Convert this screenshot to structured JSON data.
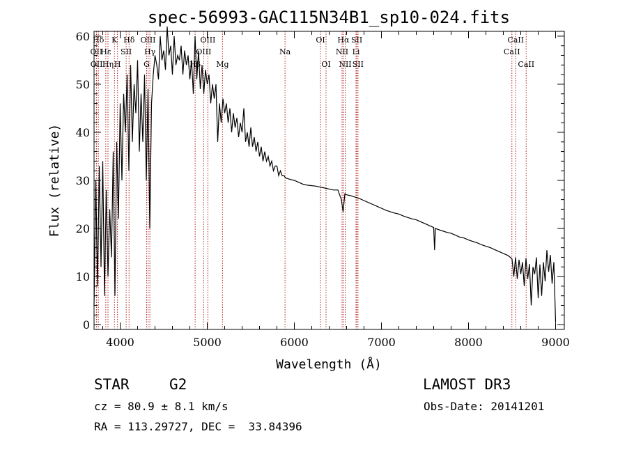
{
  "chart_data": {
    "type": "line",
    "title": "spec-56993-GAC115N34B1_sp10-024.fits",
    "xlabel": "Wavelength (Å)",
    "ylabel": "Flux (relative)",
    "xlim": [
      3700,
      9100
    ],
    "ylim": [
      -1,
      61
    ],
    "xticks": [
      4000,
      5000,
      6000,
      7000,
      8000,
      9000
    ],
    "yticks": [
      0,
      10,
      20,
      30,
      40,
      50,
      60
    ],
    "xtick_labels": [
      "4000",
      "5000",
      "6000",
      "7000",
      "8000",
      "9000"
    ],
    "ytick_labels": [
      "0",
      "10",
      "20",
      "30",
      "40",
      "50",
      "60"
    ],
    "grid": false,
    "series": [
      {
        "name": "flux",
        "x": [
          3700,
          3720,
          3740,
          3760,
          3780,
          3800,
          3820,
          3840,
          3860,
          3880,
          3900,
          3920,
          3940,
          3960,
          3980,
          4000,
          4020,
          4040,
          4060,
          4080,
          4100,
          4120,
          4140,
          4160,
          4180,
          4200,
          4220,
          4240,
          4260,
          4280,
          4300,
          4320,
          4340,
          4360,
          4380,
          4400,
          4420,
          4440,
          4460,
          4480,
          4500,
          4520,
          4540,
          4560,
          4580,
          4600,
          4620,
          4640,
          4660,
          4680,
          4700,
          4720,
          4740,
          4760,
          4780,
          4800,
          4820,
          4840,
          4860,
          4880,
          4900,
          4920,
          4940,
          4960,
          4980,
          5000,
          5020,
          5040,
          5060,
          5080,
          5100,
          5120,
          5140,
          5160,
          5180,
          5200,
          5220,
          5240,
          5260,
          5280,
          5300,
          5320,
          5340,
          5360,
          5380,
          5400,
          5420,
          5440,
          5460,
          5480,
          5500,
          5520,
          5540,
          5560,
          5580,
          5600,
          5620,
          5640,
          5660,
          5680,
          5700,
          5720,
          5740,
          5760,
          5780,
          5800,
          5820,
          5840,
          5860,
          5880,
          5900,
          5950,
          6000,
          6050,
          6100,
          6150,
          6200,
          6250,
          6300,
          6350,
          6400,
          6450,
          6500,
          6540,
          6560,
          6580,
          6600,
          6650,
          6700,
          6750,
          6800,
          6850,
          6900,
          6950,
          7000,
          7050,
          7100,
          7150,
          7200,
          7250,
          7300,
          7350,
          7400,
          7450,
          7500,
          7550,
          7600,
          7610,
          7620,
          7650,
          7700,
          7750,
          7800,
          7850,
          7900,
          7950,
          8000,
          8050,
          8100,
          8150,
          8200,
          8250,
          8300,
          8350,
          8400,
          8450,
          8480,
          8500,
          8520,
          8540,
          8560,
          8580,
          8600,
          8620,
          8640,
          8660,
          8680,
          8700,
          8720,
          8740,
          8760,
          8780,
          8800,
          8820,
          8840,
          8860,
          8880,
          8900,
          8920,
          8940,
          8960,
          8980,
          9000
        ],
        "values": [
          4,
          30,
          8,
          33,
          12,
          34,
          6,
          28,
          10,
          24,
          14,
          36,
          6,
          38,
          22,
          46,
          30,
          48,
          40,
          52,
          32,
          54,
          38,
          50,
          44,
          55,
          36,
          48,
          38,
          52,
          30,
          49,
          20,
          46,
          52,
          56,
          54,
          51,
          60,
          55,
          57,
          53,
          62,
          56,
          58,
          52,
          60,
          54,
          56,
          55,
          58,
          52,
          57,
          54,
          56,
          51,
          55,
          48,
          60,
          51,
          57,
          49,
          54,
          48,
          53,
          50,
          52,
          46,
          50,
          47,
          50,
          38,
          46,
          42,
          47,
          44,
          46,
          42,
          45,
          40,
          44,
          41,
          43,
          39,
          42,
          40,
          45,
          38,
          40,
          37,
          41,
          37,
          39,
          36,
          38,
          35,
          37,
          34,
          36,
          34,
          35,
          33,
          34,
          32,
          33,
          33,
          31,
          32,
          31,
          31,
          30.5,
          30.2,
          30.0,
          29.6,
          29.2,
          29.0,
          28.9,
          28.8,
          28.6,
          28.4,
          28.2,
          28.0,
          28.0,
          26.0,
          23.5,
          27.2,
          27.0,
          26.8,
          26.5,
          26.2,
          25.8,
          25.4,
          25.0,
          24.6,
          24.2,
          23.8,
          23.5,
          23.2,
          23.0,
          22.6,
          22.3,
          22.0,
          21.8,
          21.4,
          21.0,
          20.6,
          20.2,
          15.5,
          20.0,
          19.8,
          19.5,
          19.2,
          19.0,
          18.6,
          18.2,
          18.0,
          17.6,
          17.3,
          17.0,
          16.6,
          16.3,
          16.0,
          15.6,
          15.2,
          14.8,
          14.4,
          14.0,
          13.6,
          10.0,
          14.0,
          9.5,
          13.5,
          10.5,
          13.0,
          8.0,
          13.8,
          9.5,
          12.6,
          4.0,
          12.0,
          10.5,
          14.0,
          5.5,
          12.5,
          6.0,
          13.0,
          9.0,
          15.5,
          11.0,
          14.5,
          8.5,
          13.0,
          0.5
        ]
      }
    ],
    "line_labels": [
      {
        "name": "Hδ",
        "wl": 3750,
        "row": 0
      },
      {
        "name": "OII",
        "wl": 3727,
        "row": 1
      },
      {
        "name": "OII",
        "wl": 3729,
        "row": 2
      },
      {
        "name": "Hε",
        "wl": 3835,
        "row": 1
      },
      {
        "name": "Hη",
        "wl": 3860,
        "row": 2
      },
      {
        "name": "K",
        "wl": 3934,
        "row": 0
      },
      {
        "name": "H",
        "wl": 3969,
        "row": 2
      },
      {
        "name": "SII",
        "wl": 4069,
        "row": 1
      },
      {
        "name": "Hδ",
        "wl": 4102,
        "row": 0
      },
      {
        "name": "G",
        "wl": 4304,
        "row": 2
      },
      {
        "name": "OIII",
        "wl": 4320,
        "row": 0
      },
      {
        "name": "Hγ",
        "wl": 4341,
        "row": 1
      },
      {
        "name": "Hβ",
        "wl": 4861,
        "row": 2
      },
      {
        "name": "OIII",
        "wl": 4959,
        "row": 1
      },
      {
        "name": "OIII",
        "wl": 5007,
        "row": 0
      },
      {
        "name": "Mg",
        "wl": 5175,
        "row": 2
      },
      {
        "name": "Na",
        "wl": 5893,
        "row": 1
      },
      {
        "name": "OI",
        "wl": 6300,
        "row": 0
      },
      {
        "name": "OI",
        "wl": 6364,
        "row": 2
      },
      {
        "name": "Hα",
        "wl": 6563,
        "row": 0
      },
      {
        "name": "NII",
        "wl": 6548,
        "row": 1
      },
      {
        "name": "NII",
        "wl": 6584,
        "row": 2
      },
      {
        "name": "SII",
        "wl": 6717,
        "row": 0
      },
      {
        "name": "Li",
        "wl": 6708,
        "row": 1
      },
      {
        "name": "SII",
        "wl": 6731,
        "row": 2
      },
      {
        "name": "CaII",
        "wl": 8542,
        "row": 0
      },
      {
        "name": "CaII",
        "wl": 8498,
        "row": 1
      },
      {
        "name": "CaII",
        "wl": 8662,
        "row": 2
      }
    ]
  },
  "footer": {
    "object_type": "STAR",
    "subclass": "G2",
    "survey": "LAMOST DR3",
    "cz_line": "cz = 80.9 ± 8.1 km/s",
    "obs_date": "Obs-Date: 20141201",
    "radec_line": "RA = 113.29727, DEC =  33.84396"
  },
  "colors": {
    "line_marker": "#b22222",
    "spectrum": "#000000",
    "axes": "#000000"
  }
}
